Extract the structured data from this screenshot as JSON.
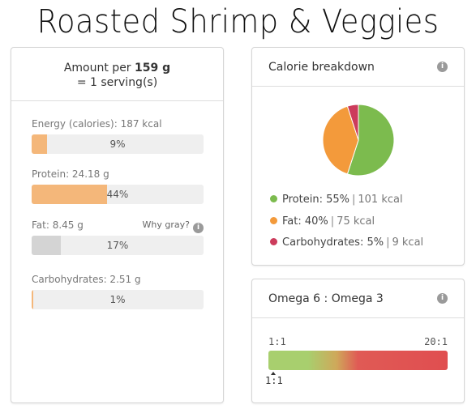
{
  "title": "Roasted Shrimp & Veggies",
  "amount": {
    "prefix": "Amount per",
    "weight": "159 g",
    "serving": "= 1 serving(s)"
  },
  "nutrients": [
    {
      "label": "Energy (calories): 187 kcal",
      "percent": "9%",
      "fraction": 0.09,
      "gray": false
    },
    {
      "label": "Protein: 24.18 g",
      "percent": "44%",
      "fraction": 0.44,
      "gray": false
    },
    {
      "label": "Fat: 8.45 g",
      "percent": "17%",
      "fraction": 0.17,
      "gray": true
    },
    {
      "label": "Carbohydrates: 2.51 g",
      "percent": "1%",
      "fraction": 0.01,
      "gray": false
    }
  ],
  "why_gray": "Why gray?",
  "info_icon_glyph": "i",
  "calorie_breakdown": {
    "title": "Calorie breakdown",
    "items": [
      {
        "name": "Protein",
        "pct": "55%",
        "kcal": "101 kcal",
        "value": 55,
        "color": "#7cbb4e"
      },
      {
        "name": "Fat",
        "pct": "40%",
        "kcal": "75 kcal",
        "value": 40,
        "color": "#f39a3b"
      },
      {
        "name": "Carbohydrates",
        "pct": "5%",
        "kcal": "9 kcal",
        "value": 5,
        "color": "#cc3c5c"
      }
    ]
  },
  "omega": {
    "title": "Omega 6 : Omega 3",
    "min_label": "1:1",
    "max_label": "20:1",
    "marker_label": "1:1",
    "marker_value": 1
  }
}
